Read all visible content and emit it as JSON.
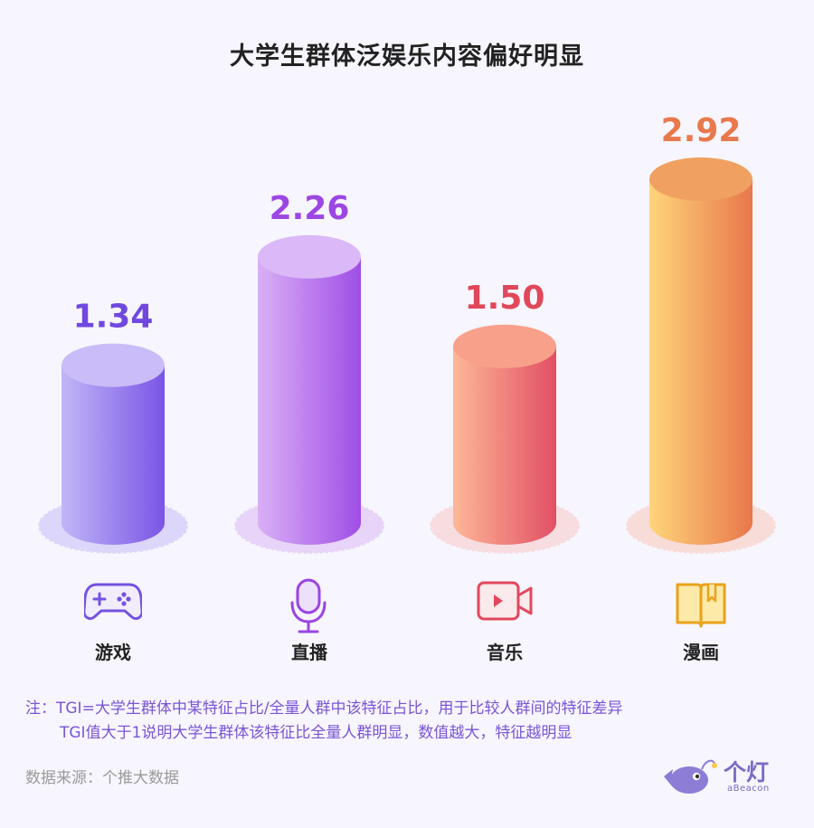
{
  "chart_data": {
    "type": "bar",
    "title": "大学生群体泛娱乐内容偏好明显",
    "categories": [
      "游戏",
      "直播",
      "音乐",
      "漫画"
    ],
    "values": [
      1.34,
      2.26,
      1.5,
      2.92
    ],
    "value_labels": [
      "1.34",
      "2.26",
      "1.50",
      "2.92"
    ],
    "icons": [
      "gamepad-icon",
      "microphone-icon",
      "video-camera-icon",
      "book-icon"
    ],
    "ylim": [
      0,
      3.2
    ],
    "style": "cylinder",
    "colors": [
      {
        "light": "#c1b6f7",
        "dark": "#7a55e6",
        "top": "#c9bcf9",
        "label": "#7048e0",
        "shadow": "#ddd6fb"
      },
      {
        "light": "#d9b0f5",
        "dark": "#a04ee6",
        "top": "#dbb8f7",
        "label": "#9c46e4",
        "shadow": "#e7d4f8"
      },
      {
        "light": "#fdb898",
        "dark": "#e24f64",
        "top": "#f9a08a",
        "label": "#e0485a",
        "shadow": "#f7dce0"
      },
      {
        "light": "#ffd57a",
        "dark": "#e8774c",
        "top": "#f0a060",
        "label": "#e8794c",
        "shadow": "#f8dcd8"
      }
    ]
  },
  "note": {
    "line1": "注：TGI=大学生群体中某特征占比/全量人群中该特征占比，用于比较人群间的特征差异",
    "line2": "TGI值大于1说明大学生群体该特征比全量人群明显，数值越大，特征越明显"
  },
  "source": "数据来源：个推大数据",
  "logo": {
    "cn": "个灯",
    "en": "aBeacon"
  }
}
